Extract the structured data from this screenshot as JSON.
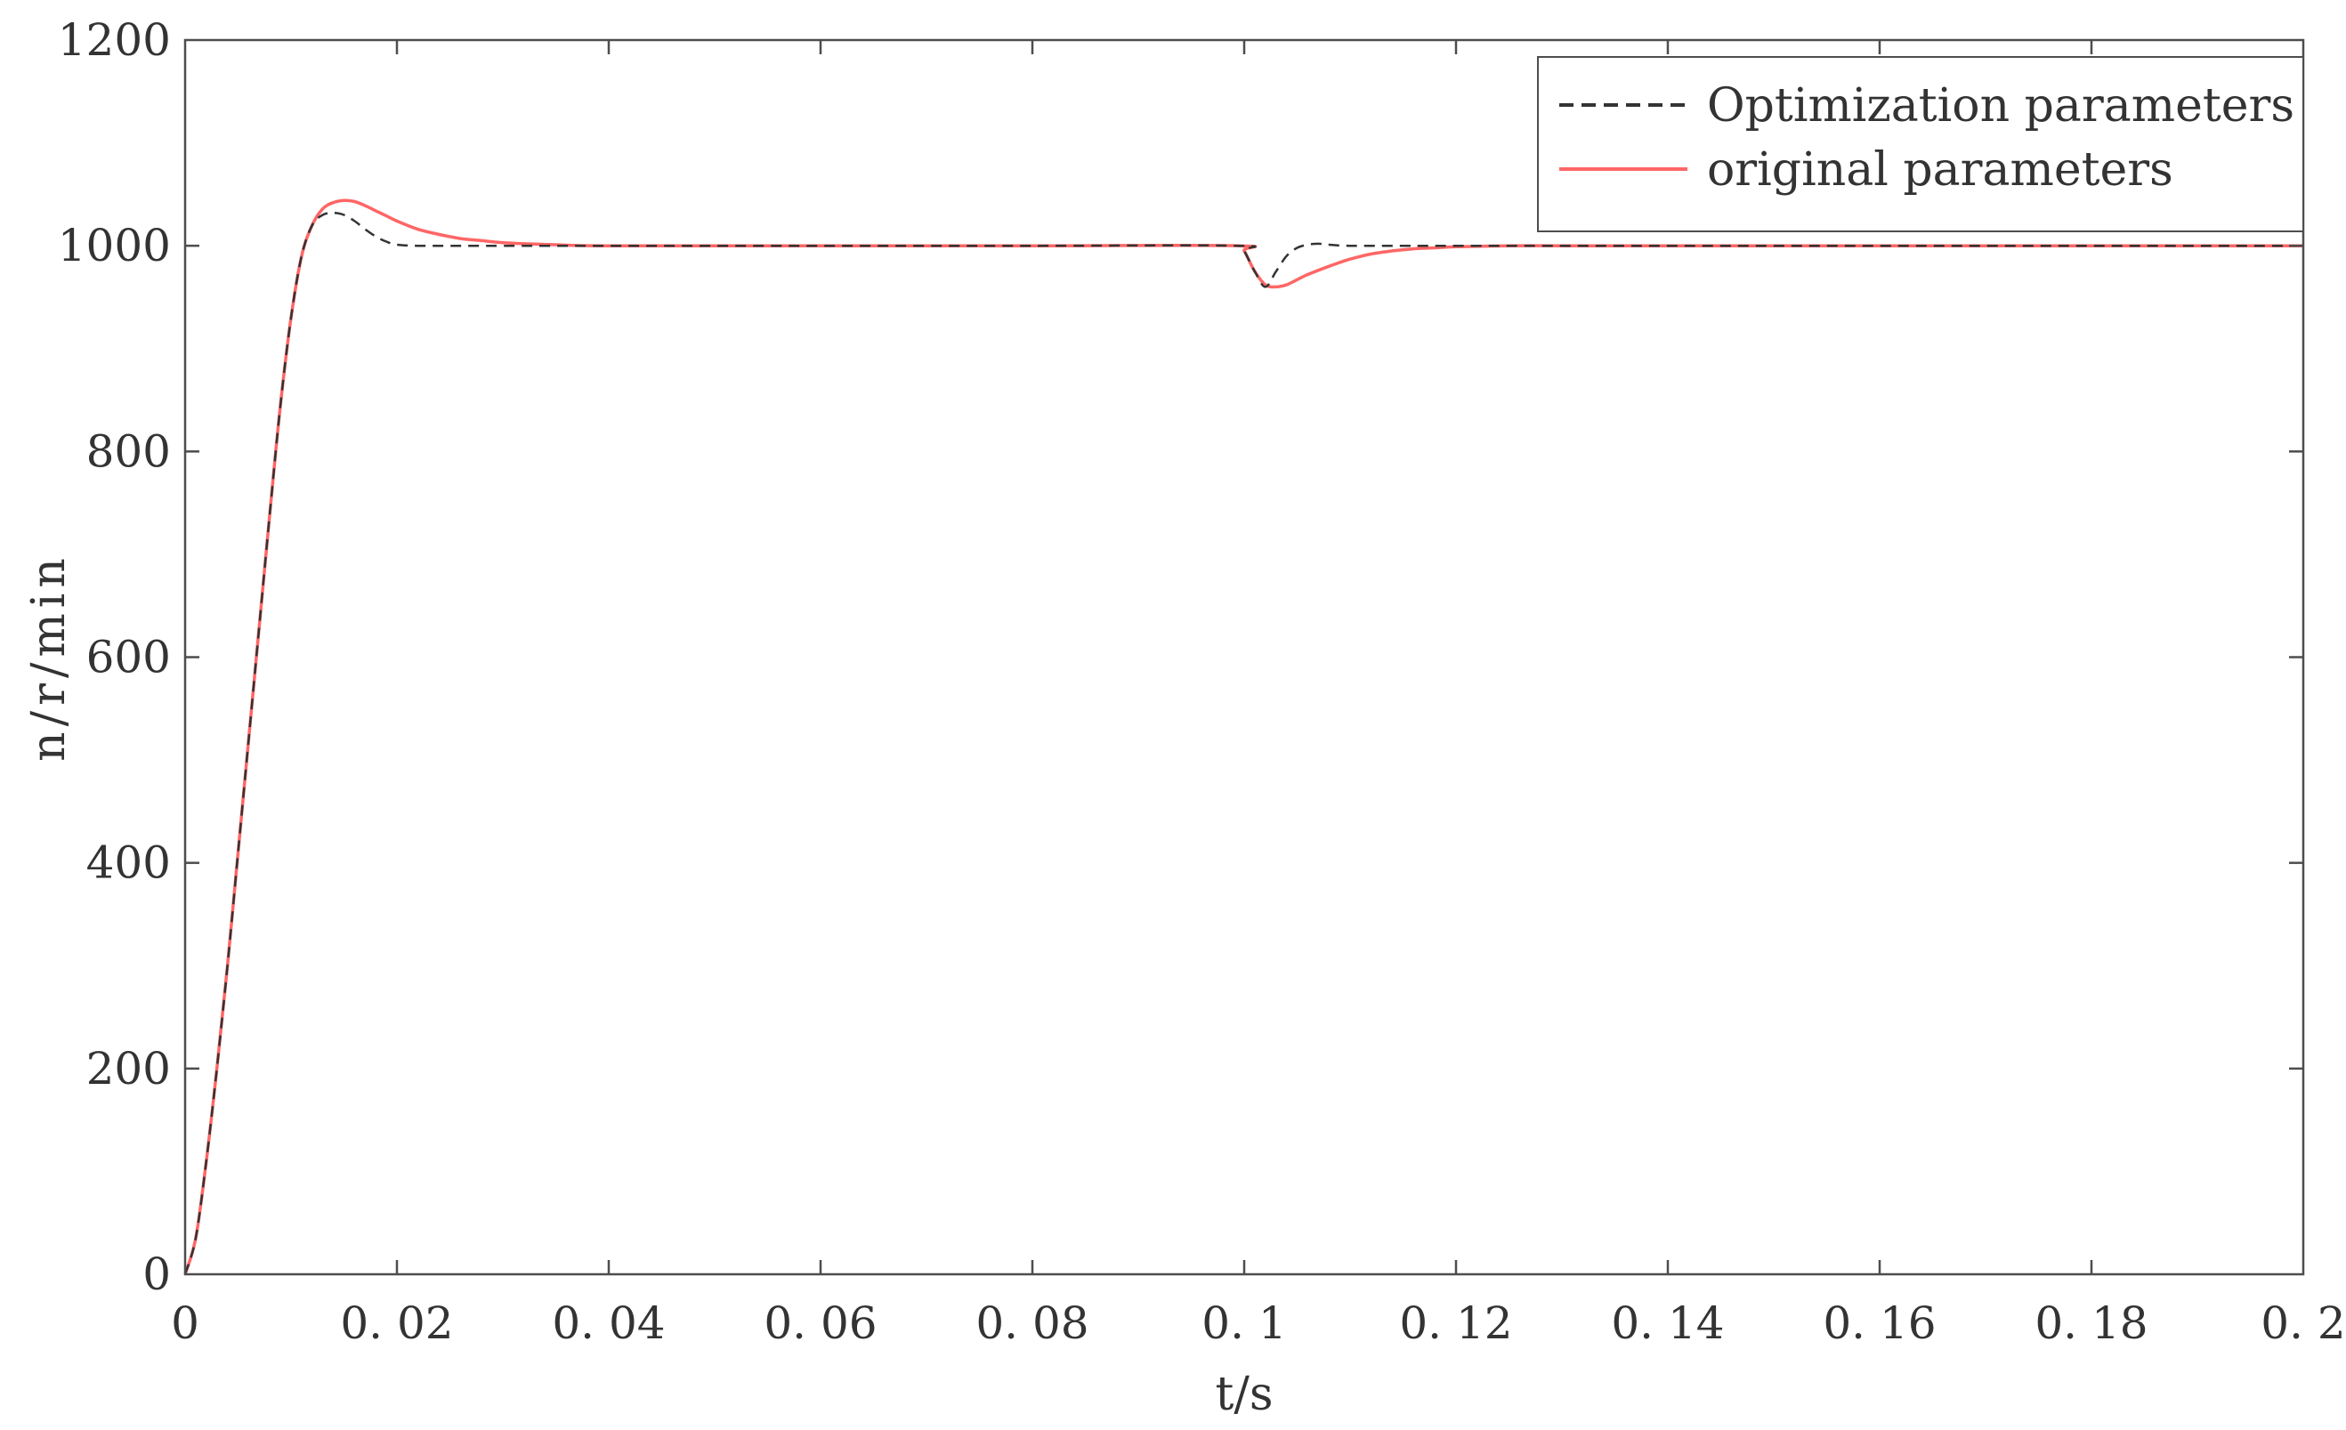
{
  "chart_data": {
    "type": "line",
    "title": "",
    "xlabel": "t/s",
    "ylabel": "n/r/min",
    "xlim": [
      0,
      0.2
    ],
    "ylim": [
      0,
      1200
    ],
    "x_ticks": [
      0,
      0.02,
      0.04,
      0.06,
      0.08,
      0.1,
      0.12,
      0.14,
      0.16,
      0.18,
      0.2
    ],
    "x_tick_labels": [
      "0",
      "0. 02",
      "0. 04",
      "0. 06",
      "0. 08",
      "0. 1",
      "0. 12",
      "0. 14",
      "0. 16",
      "0. 18",
      "0. 2"
    ],
    "y_ticks": [
      0,
      200,
      400,
      600,
      800,
      1000,
      1200
    ],
    "y_tick_labels": [
      "0",
      "200",
      "400",
      "600",
      "800",
      "1000",
      "1200"
    ],
    "grid": false,
    "legend_position": "top-right",
    "series": [
      {
        "name": "Optimization parameters",
        "color": "#333333",
        "style": "dashed",
        "x": [
          0,
          0.001,
          0.002,
          0.003,
          0.004,
          0.005,
          0.006,
          0.007,
          0.008,
          0.009,
          0.01,
          0.011,
          0.012,
          0.013,
          0.014,
          0.015,
          0.016,
          0.017,
          0.018,
          0.019,
          0.02,
          0.022,
          0.025,
          0.03,
          0.04,
          0.06,
          0.08,
          0.0995,
          0.1,
          0.101,
          0.102,
          0.103,
          0.104,
          0.105,
          0.106,
          0.107,
          0.108,
          0.11,
          0.115,
          0.12,
          0.14,
          0.16,
          0.18,
          0.2
        ],
        "y": [
          0,
          35,
          110,
          200,
          300,
          410,
          520,
          630,
          740,
          845,
          930,
          990,
          1020,
          1030,
          1032,
          1030,
          1024,
          1016,
          1009,
          1004,
          1001,
          1000,
          1000,
          1000,
          1000,
          1000,
          1000,
          1000,
          995,
          975,
          960,
          975,
          990,
          998,
          1001,
          1002,
          1001,
          1000,
          1000,
          1000,
          1000,
          1000,
          1000,
          1000
        ]
      },
      {
        "name": "original parameters",
        "color": "#ff6666",
        "style": "solid",
        "x": [
          0,
          0.001,
          0.002,
          0.003,
          0.004,
          0.005,
          0.006,
          0.007,
          0.008,
          0.009,
          0.01,
          0.011,
          0.012,
          0.013,
          0.014,
          0.015,
          0.016,
          0.017,
          0.018,
          0.019,
          0.02,
          0.022,
          0.024,
          0.026,
          0.028,
          0.03,
          0.035,
          0.04,
          0.06,
          0.08,
          0.0995,
          0.1,
          0.101,
          0.102,
          0.103,
          0.104,
          0.105,
          0.106,
          0.108,
          0.11,
          0.112,
          0.114,
          0.116,
          0.118,
          0.12,
          0.125,
          0.13,
          0.14,
          0.16,
          0.18,
          0.2
        ],
        "y": [
          0,
          35,
          110,
          200,
          300,
          410,
          520,
          630,
          740,
          845,
          930,
          990,
          1020,
          1036,
          1042,
          1044,
          1043,
          1039,
          1034,
          1029,
          1024,
          1016,
          1011,
          1007,
          1005,
          1003,
          1001,
          1000,
          1000,
          1000,
          1000,
          995,
          975,
          962,
          960,
          962,
          967,
          972,
          980,
          987,
          992,
          995,
          997,
          998,
          999,
          1000,
          1000,
          1000,
          1000,
          1000,
          1000
        ]
      }
    ]
  }
}
